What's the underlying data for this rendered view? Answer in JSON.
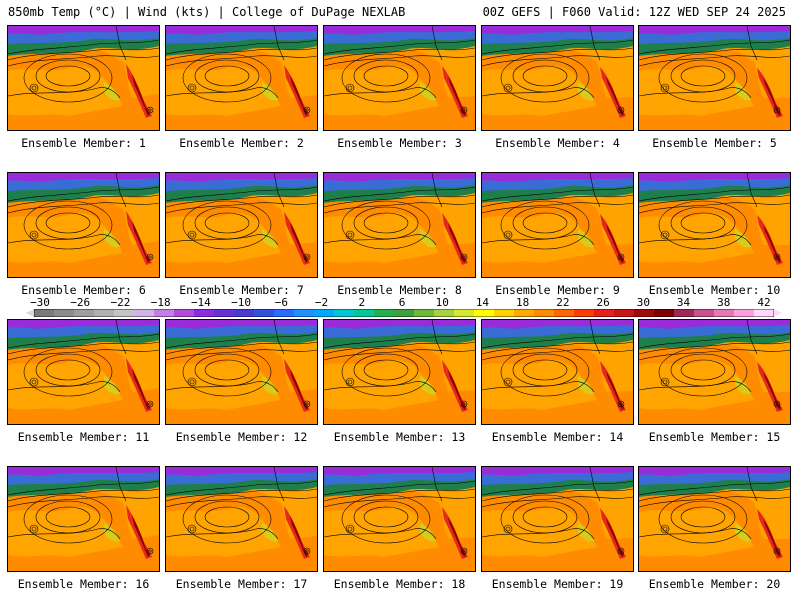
{
  "header": {
    "left": "850mb Temp (°C) | Wind (kts) | College of DuPage NEXLAB",
    "right": "00Z GEFS | F060 Valid: 12Z WED SEP 24 2025"
  },
  "panels": [
    {
      "label": "Ensemble Member: 1"
    },
    {
      "label": "Ensemble Member: 2"
    },
    {
      "label": "Ensemble Member: 3"
    },
    {
      "label": "Ensemble Member: 4"
    },
    {
      "label": "Ensemble Member: 5"
    },
    {
      "label": "Ensemble Member: 6"
    },
    {
      "label": "Ensemble Member: 7"
    },
    {
      "label": "Ensemble Member: 8"
    },
    {
      "label": "Ensemble Member: 9"
    },
    {
      "label": "Ensemble Member: 10"
    },
    {
      "label": "Ensemble Member: 11"
    },
    {
      "label": "Ensemble Member: 12"
    },
    {
      "label": "Ensemble Member: 13"
    },
    {
      "label": "Ensemble Member: 14"
    },
    {
      "label": "Ensemble Member: 15"
    },
    {
      "label": "Ensemble Member: 16"
    },
    {
      "label": "Ensemble Member: 17"
    },
    {
      "label": "Ensemble Member: 18"
    },
    {
      "label": "Ensemble Member: 19"
    },
    {
      "label": "Ensemble Member: 20"
    }
  ],
  "colorbar": {
    "labels": [
      "−30",
      "−26",
      "−22",
      "−18",
      "−14",
      "−10",
      "−6",
      "−2",
      "2",
      "6",
      "10",
      "14",
      "18",
      "22",
      "26",
      "30",
      "34",
      "38",
      "42"
    ],
    "colors": [
      "#7a7a7a",
      "#8c8c8c",
      "#9e9e9e",
      "#b0b0b0",
      "#c4c4c4",
      "#d2b4e6",
      "#c37ee8",
      "#b04cdc",
      "#8a2be2",
      "#6a2fd6",
      "#4b3ad0",
      "#3050e0",
      "#2a6cff",
      "#1e90ff",
      "#00aaff",
      "#00c8d2",
      "#00c896",
      "#20b050",
      "#3ca040",
      "#70b838",
      "#a8d040",
      "#d8e830",
      "#ffff00",
      "#ffd200",
      "#ffaa00",
      "#ff8c00",
      "#ff6600",
      "#ff3c00",
      "#e61e1e",
      "#c81414",
      "#a00a0a",
      "#7c0000",
      "#a0285a",
      "#c8508c",
      "#e678b4",
      "#ffa0dc",
      "#ffd7ff"
    ]
  }
}
